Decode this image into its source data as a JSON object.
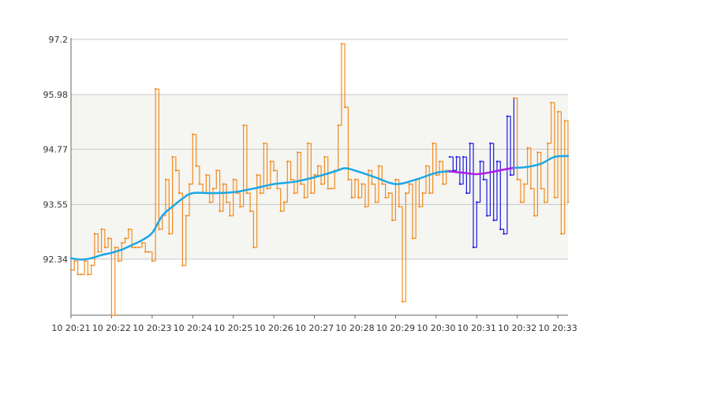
{
  "chart_data": {
    "type": "line",
    "title": "",
    "xlabel": "",
    "ylabel": "",
    "ylim": [
      91.1,
      97.2
    ],
    "y_ticks": [
      {
        "value": 97.2,
        "label": "97.2"
      },
      {
        "value": 95.98,
        "label": "95.98"
      },
      {
        "value": 94.77,
        "label": "94.77"
      },
      {
        "value": 93.55,
        "label": "93.55"
      },
      {
        "value": 92.34,
        "label": "92.34"
      }
    ],
    "x_domain": [
      "20:21",
      "20:33:15"
    ],
    "x_ticks": [
      {
        "time": "20:21",
        "label": "10 20:21"
      },
      {
        "time": "20:22",
        "label": "10 20:22"
      },
      {
        "time": "20:23",
        "label": "10 20:23"
      },
      {
        "time": "20:24",
        "label": "10 20:24"
      },
      {
        "time": "20:25",
        "label": "10 20:25"
      },
      {
        "time": "20:26",
        "label": "10 20:26"
      },
      {
        "time": "20:27",
        "label": "10 20:27"
      },
      {
        "time": "20:28",
        "label": "10 20:28"
      },
      {
        "time": "20:29",
        "label": "10 20:29"
      },
      {
        "time": "20:30",
        "label": "10 20:30"
      },
      {
        "time": "20:31",
        "label": "10 20:31"
      },
      {
        "time": "20:32",
        "label": "10 20:32"
      },
      {
        "time": "20:33",
        "label": "10 20:33"
      }
    ],
    "shaded_band": [
      92.34,
      95.98
    ],
    "grid": true,
    "colors": {
      "raw": "#f28c1e",
      "raw_highlight": "#1a1ae6",
      "average": "#1aa7e8",
      "average_highlight": "#b01ae8",
      "band": "#f5f5f2",
      "gridline": "#c8c8c8",
      "axis": "#666666"
    },
    "highlight_range": [
      "20:30:20",
      "20:31:55"
    ],
    "series": [
      {
        "style": "step",
        "color": "#f28c1e",
        "x": [
          "20:21:00",
          "20:21:05",
          "20:21:10",
          "20:21:15",
          "20:21:20",
          "20:21:25",
          "20:21:30",
          "20:21:35",
          "20:21:40",
          "20:21:45",
          "20:21:50",
          "20:21:55",
          "20:22:00",
          "20:22:05",
          "20:22:10",
          "20:22:15",
          "20:22:20",
          "20:22:25",
          "20:22:30",
          "20:22:35",
          "20:22:40",
          "20:22:45",
          "20:22:50",
          "20:22:55",
          "20:23:00",
          "20:23:05",
          "20:23:10",
          "20:23:15",
          "20:23:20",
          "20:23:25",
          "20:23:30",
          "20:23:35",
          "20:23:40",
          "20:23:45",
          "20:23:50",
          "20:23:55",
          "20:24:00",
          "20:24:05",
          "20:24:10",
          "20:24:15",
          "20:24:20",
          "20:24:25",
          "20:24:30",
          "20:24:35",
          "20:24:40",
          "20:24:45",
          "20:24:50",
          "20:24:55",
          "20:25:00",
          "20:25:05",
          "20:25:10",
          "20:25:15",
          "20:25:20",
          "20:25:25",
          "20:25:30",
          "20:25:35",
          "20:25:40",
          "20:25:45",
          "20:25:50",
          "20:25:55",
          "20:26:00",
          "20:26:05",
          "20:26:10",
          "20:26:15",
          "20:26:20",
          "20:26:25",
          "20:26:30",
          "20:26:35",
          "20:26:40",
          "20:26:45",
          "20:26:50",
          "20:26:55",
          "20:27:00",
          "20:27:05",
          "20:27:10",
          "20:27:15",
          "20:27:20",
          "20:27:25",
          "20:27:30",
          "20:27:35",
          "20:27:40",
          "20:27:45",
          "20:27:50",
          "20:27:55",
          "20:28:00",
          "20:28:05",
          "20:28:10",
          "20:28:15",
          "20:28:20",
          "20:28:25",
          "20:28:30",
          "20:28:35",
          "20:28:40",
          "20:28:45",
          "20:28:50",
          "20:28:55",
          "20:29:00",
          "20:29:05",
          "20:29:10",
          "20:29:15",
          "20:29:20",
          "20:29:25",
          "20:29:30",
          "20:29:35",
          "20:29:40",
          "20:29:45",
          "20:29:50",
          "20:29:55",
          "20:30:00",
          "20:30:05",
          "20:30:10",
          "20:30:15",
          "20:30:20"
        ],
        "y": [
          92.1,
          92.3,
          92.0,
          92.0,
          92.3,
          92.0,
          92.2,
          92.9,
          92.5,
          93.0,
          92.6,
          92.8,
          91.1,
          92.6,
          92.3,
          92.7,
          92.8,
          93.0,
          92.6,
          92.6,
          92.6,
          92.7,
          92.5,
          92.5,
          92.3,
          96.1,
          93.0,
          93.3,
          94.1,
          92.9,
          94.6,
          94.3,
          93.8,
          92.2,
          93.3,
          94.0,
          95.1,
          94.4,
          94.0,
          93.8,
          94.2,
          93.6,
          93.9,
          94.3,
          93.4,
          94.0,
          93.6,
          93.3,
          94.1,
          93.8,
          93.5,
          95.3,
          93.8,
          93.4,
          92.6,
          94.2,
          93.8,
          94.9,
          93.9,
          94.5,
          94.3,
          93.9,
          93.4,
          93.6,
          94.5,
          94.1,
          93.8,
          94.7,
          94.0,
          93.7,
          94.9,
          93.8,
          94.2,
          94.4,
          94.0,
          94.6,
          93.9,
          93.9,
          94.3,
          95.3,
          97.1,
          95.7,
          94.1,
          93.7,
          94.1,
          93.7,
          94.0,
          93.5,
          94.3,
          94.0,
          93.6,
          94.4,
          94.0,
          93.7,
          93.8,
          93.2,
          94.1,
          93.5,
          91.4,
          93.8,
          94.0,
          92.8,
          94.1,
          93.5,
          93.8,
          94.4,
          93.8,
          94.9,
          94.2,
          94.5,
          94.0,
          94.3,
          94.3
        ]
      },
      {
        "style": "step",
        "color": "#1a1ae6",
        "x": [
          "20:30:20",
          "20:30:25",
          "20:30:30",
          "20:30:35",
          "20:30:40",
          "20:30:45",
          "20:30:50",
          "20:30:55",
          "20:31:00",
          "20:31:05",
          "20:31:10",
          "20:31:15",
          "20:31:20",
          "20:31:25",
          "20:31:30",
          "20:31:35",
          "20:31:40",
          "20:31:45",
          "20:31:50",
          "20:31:55"
        ],
        "y": [
          94.6,
          94.3,
          94.6,
          94.0,
          94.6,
          93.8,
          94.9,
          92.6,
          93.6,
          94.5,
          94.1,
          93.3,
          94.9,
          93.2,
          94.5,
          93.0,
          92.9,
          95.5,
          94.2,
          95.9
        ]
      },
      {
        "style": "step",
        "color": "#f28c1e",
        "x": [
          "20:31:55",
          "20:32:00",
          "20:32:05",
          "20:32:10",
          "20:32:15",
          "20:32:20",
          "20:32:25",
          "20:32:30",
          "20:32:35",
          "20:32:40",
          "20:32:45",
          "20:32:50",
          "20:32:55",
          "20:33:00",
          "20:33:05",
          "20:33:10",
          "20:33:15"
        ],
        "y": [
          95.9,
          94.1,
          93.6,
          94.0,
          94.8,
          93.9,
          93.3,
          94.7,
          93.9,
          93.6,
          94.9,
          95.8,
          93.7,
          95.6,
          92.9,
          95.4,
          93.6
        ]
      },
      {
        "style": "smooth",
        "color": "#1aa7e8",
        "x": [
          "20:21:00",
          "20:21:15",
          "20:21:30",
          "20:21:45",
          "20:22:00",
          "20:22:15",
          "20:22:30",
          "20:22:45",
          "20:23:00",
          "20:23:15",
          "20:23:30",
          "20:23:45",
          "20:24:00",
          "20:24:30",
          "20:25:00",
          "20:25:30",
          "20:26:00",
          "20:26:30",
          "20:27:00",
          "20:27:30",
          "20:27:45",
          "20:28:00",
          "20:28:30",
          "20:29:00",
          "20:29:30",
          "20:30:00",
          "20:30:20"
        ],
        "y": [
          92.36,
          92.33,
          92.36,
          92.43,
          92.48,
          92.55,
          92.65,
          92.76,
          92.92,
          93.3,
          93.5,
          93.68,
          93.8,
          93.8,
          93.82,
          93.9,
          94.0,
          94.05,
          94.15,
          94.28,
          94.35,
          94.3,
          94.15,
          94.0,
          94.1,
          94.25,
          94.28
        ]
      },
      {
        "style": "smooth",
        "color": "#b01ae8",
        "x": [
          "20:30:20",
          "20:30:40",
          "20:31:00",
          "20:31:20",
          "20:31:40",
          "20:31:55"
        ],
        "y": [
          94.28,
          94.25,
          94.22,
          94.26,
          94.32,
          94.36
        ]
      },
      {
        "style": "smooth",
        "color": "#1aa7e8",
        "x": [
          "20:31:55",
          "20:32:15",
          "20:32:35",
          "20:32:55",
          "20:33:15"
        ],
        "y": [
          94.36,
          94.38,
          94.45,
          94.6,
          94.62
        ]
      }
    ]
  }
}
